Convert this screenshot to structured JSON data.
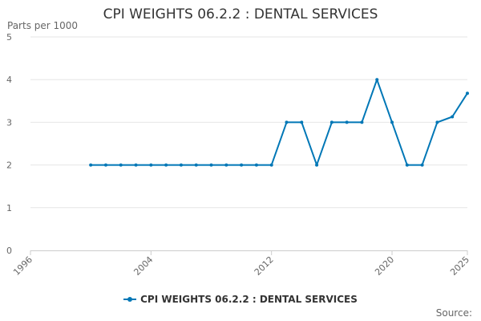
{
  "chart_data": {
    "type": "line",
    "title": "CPI WEIGHTS 06.2.2 : DENTAL SERVICES",
    "ylabel": "Parts per 1000",
    "xlabel": "",
    "xlim": [
      1996,
      2025
    ],
    "ylim": [
      0,
      5
    ],
    "x_ticks": [
      1996,
      2004,
      2012,
      2020,
      2025
    ],
    "y_ticks": [
      0,
      1,
      2,
      3,
      4,
      5
    ],
    "grid": "horizontal",
    "legend_position": "bottom",
    "series": [
      {
        "name": "CPI WEIGHTS 06.2.2 : DENTAL SERVICES",
        "color": "#0077b6",
        "x": [
          2000,
          2001,
          2002,
          2003,
          2004,
          2005,
          2006,
          2007,
          2008,
          2009,
          2010,
          2011,
          2012,
          2013,
          2014,
          2015,
          2016,
          2017,
          2018,
          2019,
          2020,
          2021,
          2022,
          2023,
          2024,
          2025
        ],
        "values": [
          2,
          2,
          2,
          2,
          2,
          2,
          2,
          2,
          2,
          2,
          2,
          2,
          2,
          3,
          3,
          2,
          3,
          3,
          3,
          4,
          3,
          2,
          2,
          3,
          3.13,
          3.68
        ]
      }
    ]
  },
  "source_label": "Source:"
}
